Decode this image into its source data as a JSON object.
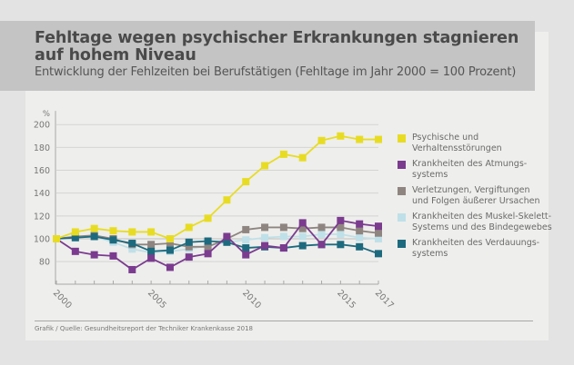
{
  "header": {
    "title": "Fehltage wegen psychischer Erkrankungen stagnieren auf hohem Niveau",
    "subtitle": "Entwicklung der Fehlzeiten bei Berufstätigen (Fehltage im Jahr 2000 = 100 Prozent)"
  },
  "source": "Grafik / Quelle: Gesundheitsreport der Techniker Krankenkasse 2018",
  "chart_data": {
    "type": "line",
    "title": "Fehltage wegen psychischer Erkrankungen stagnieren auf hohem Niveau",
    "subtitle": "Entwicklung der Fehlzeiten bei Berufstätigen (Fehltage im Jahr 2000 = 100 Prozent)",
    "xlabel": "",
    "ylabel": "%",
    "x": [
      2000,
      2001,
      2002,
      2003,
      2004,
      2005,
      2006,
      2007,
      2008,
      2009,
      2010,
      2011,
      2012,
      2013,
      2014,
      2015,
      2016,
      2017
    ],
    "x_tick_labels": [
      "2000",
      "2005",
      "2010",
      "2015",
      "2017"
    ],
    "y_ticks": [
      80,
      100,
      120,
      140,
      160,
      180,
      200
    ],
    "ylim": [
      70,
      210
    ],
    "grid": true,
    "legend_position": "right",
    "series": [
      {
        "name": "Psychische und Verhaltensstörungen",
        "color": "#e8dc23",
        "values": [
          100,
          106,
          109,
          107,
          106,
          106,
          100,
          110,
          118,
          134,
          150,
          164,
          174,
          171,
          186,
          190,
          187,
          187
        ]
      },
      {
        "name": "Krankheiten des Atmungs-systems",
        "color": "#7b3b8f",
        "values": [
          100,
          89,
          86,
          85,
          73,
          83,
          75,
          84,
          87,
          102,
          86,
          94,
          92,
          114,
          95,
          116,
          113,
          111
        ]
      },
      {
        "name": "Verletzungen, Vergiftungen und Folgen äußerer Ursachen",
        "color": "#8f8580",
        "values": [
          100,
          102,
          103,
          100,
          95,
          95,
          96,
          93,
          93,
          100,
          108,
          110,
          110,
          109,
          110,
          110,
          107,
          105
        ]
      },
      {
        "name": "Krankheiten des Muskel-Skelett-Systems und des Bindegewebes",
        "color": "#bfe0e8",
        "values": [
          100,
          101,
          102,
          97,
          91,
          88,
          89,
          91,
          94,
          97,
          99,
          101,
          102,
          102,
          104,
          104,
          101,
          100
        ]
      },
      {
        "name": "Krankheiten des Verdauungs-systems",
        "color": "#1d6a7e",
        "values": [
          100,
          101,
          102,
          99,
          96,
          89,
          90,
          97,
          98,
          97,
          92,
          93,
          92,
          94,
          95,
          95,
          93,
          87
        ]
      }
    ]
  },
  "legend": [
    {
      "label": "Psychische und Verhaltensstörungen",
      "line1": "Psychische und",
      "line2": "Verhaltensstörungen"
    },
    {
      "label": "Krankheiten des Atmungs-systems",
      "line1": "Krankheiten des Atmungs-",
      "line2": "systems"
    },
    {
      "label": "Verletzungen, Vergiftungen und Folgen äußerer Ursachen",
      "line1": "Verletzungen, Vergiftungen",
      "line2": "und Folgen äußerer Ursachen"
    },
    {
      "label": "Krankheiten des Muskel-Skelett-Systems und des Bindegewebes",
      "line1": "Krankheiten des Muskel-Skelett-",
      "line2": "Systems und des Bindegewebes"
    },
    {
      "label": "Krankheiten des Verdauungs-systems",
      "line1": "Krankheiten des Verdauungs-",
      "line2": "systems"
    }
  ]
}
